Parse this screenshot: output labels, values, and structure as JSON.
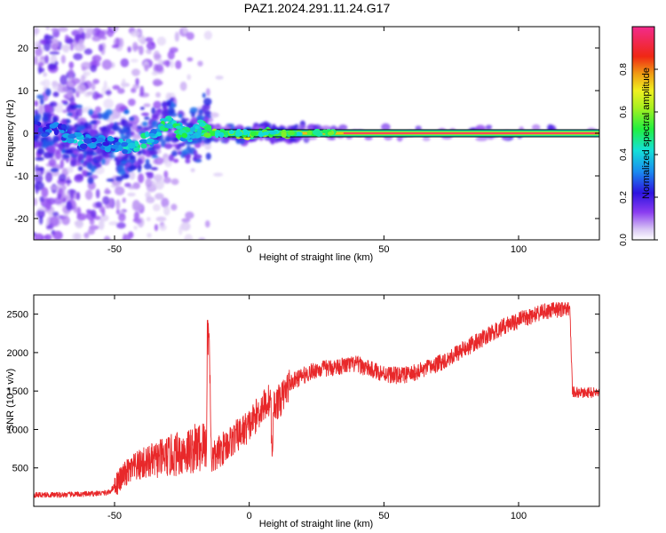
{
  "title": "PAZ1.2024.291.11.24.G17",
  "colors": {
    "snr_line": "#e8282a",
    "carrier_core": "#ff2a6a",
    "background": "#ffffff"
  },
  "chart_data": [
    {
      "type": "heatmap",
      "xlabel": "Height of straight line (km)",
      "ylabel": "Frequency (Hz)",
      "xlim": [
        -80,
        130
      ],
      "ylim": [
        -25,
        25
      ],
      "xticks": [
        -50,
        0,
        50,
        100
      ],
      "yticks": [
        -20,
        -10,
        0,
        10,
        20
      ],
      "colorbar": {
        "label": "Normalized spectral amplitude",
        "range": [
          0,
          1
        ],
        "ticks": [
          0.0,
          0.2,
          0.4,
          0.6,
          0.8
        ],
        "colormap": "rainbow"
      },
      "carrier": [
        {
          "x": -78,
          "f": 1.0,
          "amp": 0.22
        },
        {
          "x": -70,
          "f": 0.5,
          "amp": 0.3
        },
        {
          "x": -65,
          "f": -1.5,
          "amp": 0.38
        },
        {
          "x": -60,
          "f": -2.0,
          "amp": 0.3
        },
        {
          "x": -55,
          "f": -2.5,
          "amp": 0.28
        },
        {
          "x": -48,
          "f": -3.0,
          "amp": 0.35
        },
        {
          "x": -45,
          "f": -3.2,
          "amp": 0.4
        },
        {
          "x": -40,
          "f": -1.8,
          "amp": 0.42
        },
        {
          "x": -35,
          "f": -0.8,
          "amp": 0.4
        },
        {
          "x": -32,
          "f": 2.5,
          "amp": 0.45
        },
        {
          "x": -28,
          "f": 1.5,
          "amp": 0.42
        },
        {
          "x": -25,
          "f": 0.0,
          "amp": 0.45
        },
        {
          "x": -22,
          "f": -0.5,
          "amp": 0.4
        },
        {
          "x": -18,
          "f": 1.5,
          "amp": 0.48
        },
        {
          "x": -15,
          "f": 0.5,
          "amp": 0.5
        },
        {
          "x": -10,
          "f": 0.0,
          "amp": 0.55
        },
        {
          "x": -5,
          "f": 0.0,
          "amp": 0.6
        },
        {
          "x": 0,
          "f": -0.5,
          "amp": 0.62
        },
        {
          "x": 5,
          "f": 0.5,
          "amp": 0.65
        },
        {
          "x": 10,
          "f": 0.0,
          "amp": 0.68
        },
        {
          "x": 20,
          "f": 0.0,
          "amp": 0.75
        },
        {
          "x": 30,
          "f": 0.0,
          "amp": 0.82
        },
        {
          "x": 40,
          "f": 0.0,
          "amp": 0.9
        },
        {
          "x": 60,
          "f": 0.0,
          "amp": 0.95
        },
        {
          "x": 80,
          "f": 0.0,
          "amp": 0.9
        },
        {
          "x": 100,
          "f": 0.0,
          "amp": 0.92
        },
        {
          "x": 130,
          "f": 0.0,
          "amp": 0.95
        }
      ]
    },
    {
      "type": "line",
      "xlabel": "Height of straight line (km)",
      "ylabel": "SNR (10 * v/v)",
      "xlim": [
        -80,
        130
      ],
      "ylim": [
        0,
        2750
      ],
      "xticks": [
        -50,
        0,
        50,
        100
      ],
      "yticks": [
        500,
        1000,
        1500,
        2000,
        2500
      ],
      "series": [
        {
          "color": "#e8282a",
          "x": [
            -80,
            -70,
            -60,
            -52,
            -48,
            -45,
            -40,
            -35,
            -30,
            -25,
            -20,
            -16,
            -15,
            -14,
            -10,
            -5,
            0,
            5,
            8,
            8.5,
            9,
            12,
            15,
            20,
            25,
            30,
            35,
            40,
            45,
            50,
            55,
            60,
            65,
            70,
            75,
            80,
            85,
            90,
            95,
            100,
            105,
            110,
            115,
            119,
            120,
            121,
            125,
            130
          ],
          "y": [
            150,
            150,
            160,
            180,
            350,
            450,
            550,
            600,
            650,
            700,
            750,
            800,
            2420,
            600,
            750,
            900,
            1050,
            1300,
            1400,
            500,
            1300,
            1400,
            1600,
            1700,
            1780,
            1800,
            1830,
            1850,
            1780,
            1730,
            1700,
            1720,
            1780,
            1850,
            1950,
            2050,
            2150,
            2250,
            2350,
            2420,
            2480,
            2530,
            2570,
            2600,
            1500,
            1480,
            1480,
            1480
          ]
        }
      ]
    }
  ]
}
